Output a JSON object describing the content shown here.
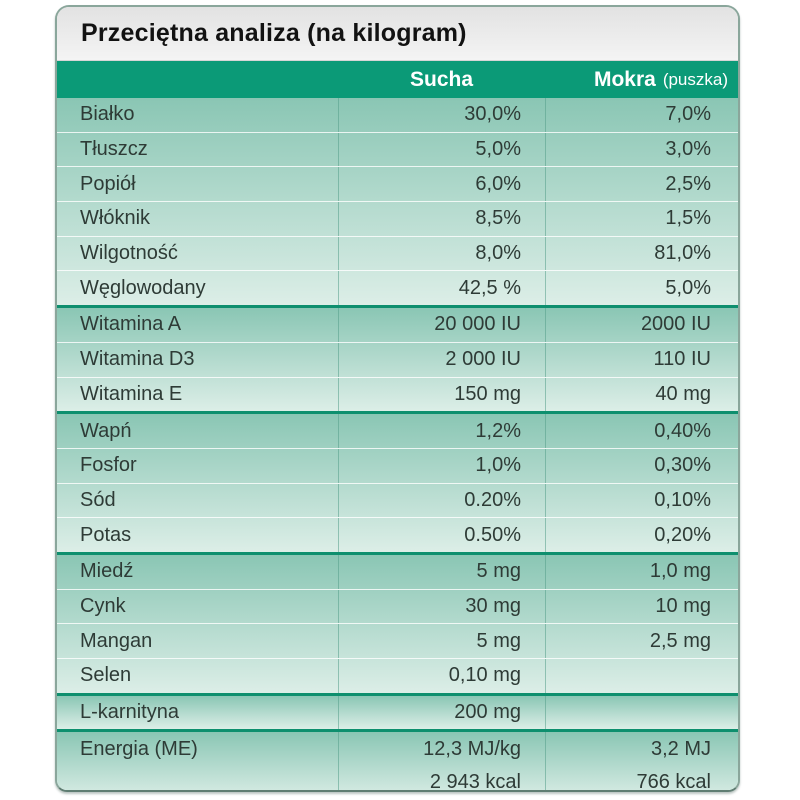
{
  "title": "Przeciętna analiza (na kilogram)",
  "header": {
    "label": "",
    "sucha": "Sucha",
    "mokra": "Mokra",
    "mokra_sub": "(puszka)"
  },
  "colors": {
    "header_bg": "#0b9a77",
    "section_separator": "#0e8f6e",
    "section_gradient_top": "#8ac6b4",
    "section_gradient_bottom": "#dceee7",
    "title_bar_bg": "#e2e2e2",
    "text": "#2e3b36"
  },
  "sections": [
    {
      "rows": [
        {
          "label": "Białko",
          "sucha": "30,0%",
          "mokra": "7,0%"
        },
        {
          "label": "Tłuszcz",
          "sucha": "5,0%",
          "mokra": "3,0%"
        },
        {
          "label": "Popiół",
          "sucha": "6,0%",
          "mokra": "2,5%"
        },
        {
          "label": "Włóknik",
          "sucha": "8,5%",
          "mokra": "1,5%"
        },
        {
          "label": "Wilgotność",
          "sucha": "8,0%",
          "mokra": "81,0%"
        },
        {
          "label": "Węglowodany",
          "sucha": "42,5 %",
          "mokra": "5,0%"
        }
      ]
    },
    {
      "rows": [
        {
          "label": "Witamina A",
          "sucha": "20 000 IU",
          "mokra": "2000 IU"
        },
        {
          "label": "Witamina D3",
          "sucha": "2 000 IU",
          "mokra": "110 IU"
        },
        {
          "label": "Witamina E",
          "sucha": "150 mg",
          "mokra": "40 mg"
        }
      ]
    },
    {
      "rows": [
        {
          "label": "Wapń",
          "sucha": "1,2%",
          "mokra": "0,40%"
        },
        {
          "label": "Fosfor",
          "sucha": "1,0%",
          "mokra": "0,30%"
        },
        {
          "label": "Sód",
          "sucha": "0.20%",
          "mokra": "0,10%"
        },
        {
          "label": "Potas",
          "sucha": "0.50%",
          "mokra": "0,20%"
        }
      ]
    },
    {
      "rows": [
        {
          "label": "Miedź",
          "sucha": "5 mg",
          "mokra": "1,0 mg"
        },
        {
          "label": "Cynk",
          "sucha": "30 mg",
          "mokra": "10 mg"
        },
        {
          "label": "Mangan",
          "sucha": "5 mg",
          "mokra": "2,5 mg"
        },
        {
          "label": "Selen",
          "sucha": "0,10 mg",
          "mokra": ""
        }
      ]
    },
    {
      "rows": [
        {
          "label": "L-karnityna",
          "sucha": "200 mg",
          "mokra": ""
        }
      ]
    },
    {
      "fill": true,
      "rows": [
        {
          "label": "Energia (ME)",
          "sucha": "12,3 MJ/kg",
          "mokra": "3,2 MJ",
          "divider": false
        },
        {
          "label": "",
          "sucha": "2 943 kcal",
          "mokra": "766 kcal",
          "divider": false
        }
      ]
    }
  ]
}
